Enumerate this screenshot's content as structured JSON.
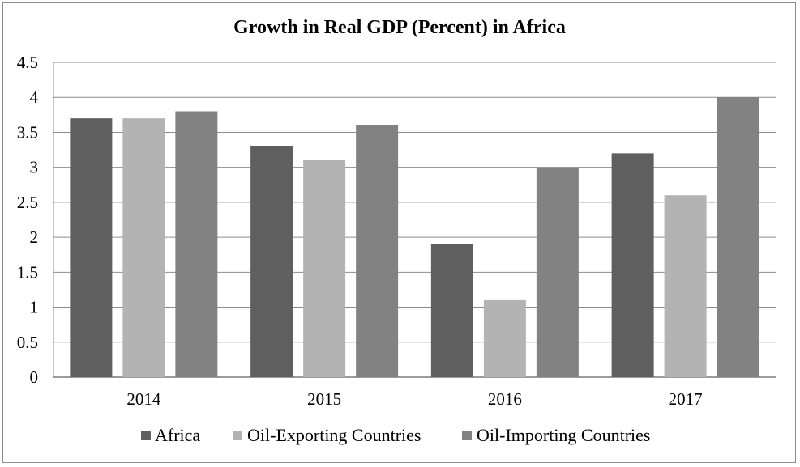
{
  "chart_data": {
    "type": "bar",
    "title": "Growth in Real GDP (Percent) in Africa",
    "xlabel": "",
    "ylabel": "",
    "categories": [
      "2014",
      "2015",
      "2016",
      "2017"
    ],
    "series": [
      {
        "name": "Africa",
        "values": [
          3.7,
          3.3,
          1.9,
          3.2
        ],
        "color": "#5f5f5f"
      },
      {
        "name": "Oil-Exporting Countries",
        "values": [
          3.7,
          3.1,
          1.1,
          2.6
        ],
        "color": "#b3b3b3"
      },
      {
        "name": "Oil-Importing Countries",
        "values": [
          3.8,
          3.6,
          3.0,
          4.0
        ],
        "color": "#828282"
      }
    ],
    "ylim": [
      0,
      4.5
    ],
    "yticks": [
      "0",
      "0.5",
      "1",
      "1.5",
      "2",
      "2.5",
      "3",
      "3.5",
      "4",
      "4.5"
    ],
    "grid": true,
    "legend_position": "bottom"
  }
}
